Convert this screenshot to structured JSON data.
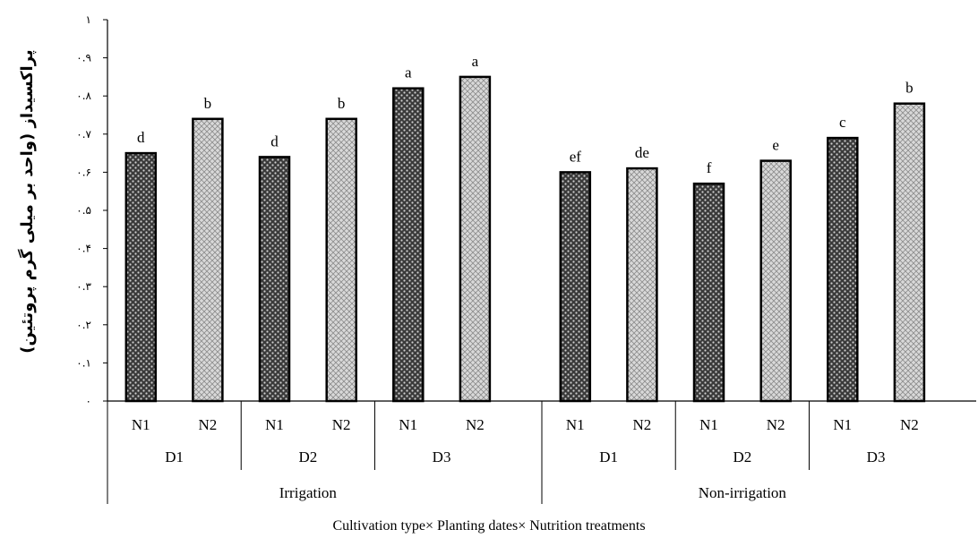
{
  "chart_data": {
    "type": "bar",
    "title": "",
    "ylabel": "پراکسیداز (واحد بر میلی گرم پروتئین)",
    "xlabel": "Cultivation type× Planting dates× Nutrition treatments",
    "ylim": [
      0,
      1
    ],
    "yticks": [
      {
        "value": 0,
        "label": "۰"
      },
      {
        "value": 0.1,
        "label": "۰.۱"
      },
      {
        "value": 0.2,
        "label": "۰.۲"
      },
      {
        "value": 0.3,
        "label": "۰.۳"
      },
      {
        "value": 0.4,
        "label": "۰.۴"
      },
      {
        "value": 0.5,
        "label": "۰.۵"
      },
      {
        "value": 0.6,
        "label": "۰.۶"
      },
      {
        "value": 0.7,
        "label": "۰.۷"
      },
      {
        "value": 0.8,
        "label": "۰.۸"
      },
      {
        "value": 0.9,
        "label": "۰.۹"
      },
      {
        "value": 1,
        "label": "۱"
      }
    ],
    "grid": false,
    "legend": "none",
    "groups": [
      {
        "name": "Irrigation",
        "dates": [
          {
            "name": "D1",
            "bars": [
              {
                "nutrition": "N1",
                "value": 0.65,
                "letter": "d"
              },
              {
                "nutrition": "N2",
                "value": 0.74,
                "letter": "b"
              }
            ]
          },
          {
            "name": "D2",
            "bars": [
              {
                "nutrition": "N1",
                "value": 0.64,
                "letter": "d"
              },
              {
                "nutrition": "N2",
                "value": 0.74,
                "letter": "b"
              }
            ]
          },
          {
            "name": "D3",
            "bars": [
              {
                "nutrition": "N1",
                "value": 0.82,
                "letter": "a"
              },
              {
                "nutrition": "N2",
                "value": 0.85,
                "letter": "a"
              }
            ]
          }
        ]
      },
      {
        "name": "Non-irrigation",
        "dates": [
          {
            "name": "D1",
            "bars": [
              {
                "nutrition": "N1",
                "value": 0.6,
                "letter": "ef"
              },
              {
                "nutrition": "N2",
                "value": 0.61,
                "letter": "de"
              }
            ]
          },
          {
            "name": "D2",
            "bars": [
              {
                "nutrition": "N1",
                "value": 0.57,
                "letter": "f"
              },
              {
                "nutrition": "N2",
                "value": 0.63,
                "letter": "e"
              }
            ]
          },
          {
            "name": "D3",
            "bars": [
              {
                "nutrition": "N1",
                "value": 0.69,
                "letter": "c"
              },
              {
                "nutrition": "N2",
                "value": 0.78,
                "letter": "b"
              }
            ]
          }
        ]
      }
    ],
    "colors": {
      "N1_fill": "#3a3a3a",
      "N1_dot": "#cfcfcf",
      "N2_fill": "#d9d9d9",
      "N2_dot": "#8c8c8c",
      "bar_stroke": "#000000"
    }
  }
}
